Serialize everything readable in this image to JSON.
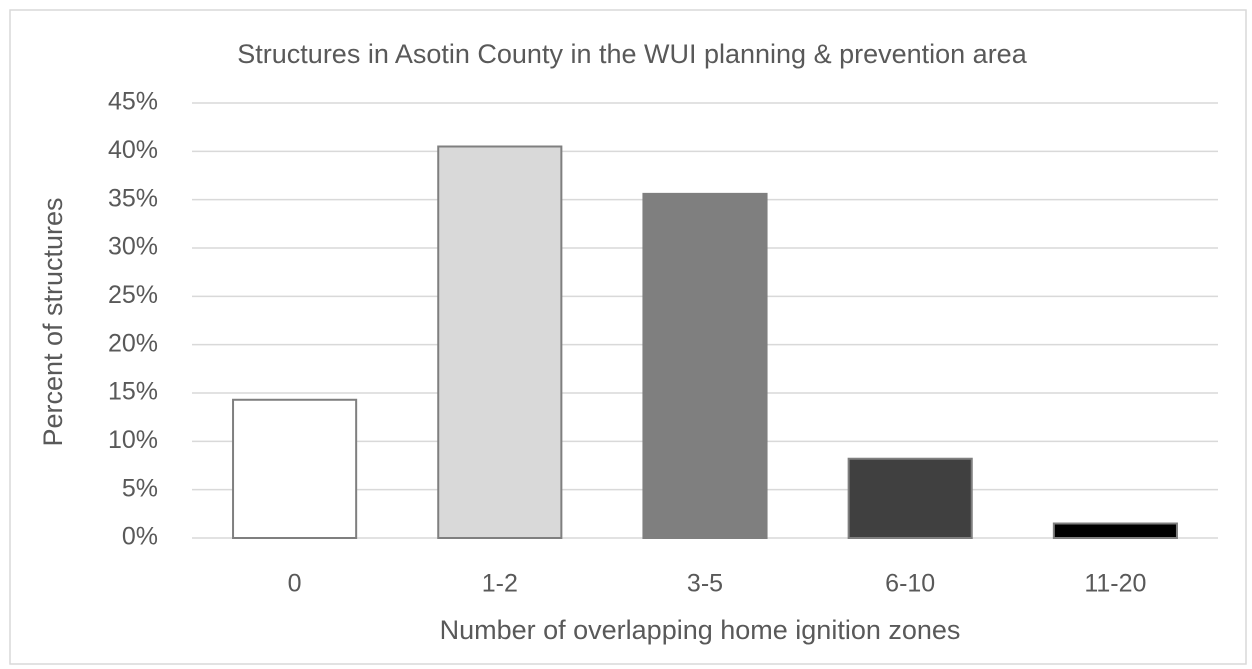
{
  "chart_data": {
    "type": "bar",
    "title": "Structures in Asotin County in the WUI planning & prevention area",
    "x_label": "Number of overlapping home ignition zones",
    "y_label": "Percent of structures",
    "categories": [
      "0",
      "1-2",
      "3-5",
      "6-10",
      "11-20"
    ],
    "values": [
      14.3,
      40.5,
      35.6,
      8.2,
      1.5
    ],
    "colors": [
      "#ffffff",
      "#d9d9d9",
      "#7f7f7f",
      "#404040",
      "#000000"
    ],
    "ylim": [
      0,
      45
    ],
    "yticks": [
      {
        "value": 0,
        "label": "0%"
      },
      {
        "value": 5,
        "label": "5%"
      },
      {
        "value": 10,
        "label": "10%"
      },
      {
        "value": 15,
        "label": "15%"
      },
      {
        "value": 20,
        "label": "20%"
      },
      {
        "value": 25,
        "label": "25%"
      },
      {
        "value": 30,
        "label": "30%"
      },
      {
        "value": 35,
        "label": "35%"
      },
      {
        "value": 40,
        "label": "40%"
      },
      {
        "value": 45,
        "label": "45%"
      }
    ],
    "grid": true
  }
}
